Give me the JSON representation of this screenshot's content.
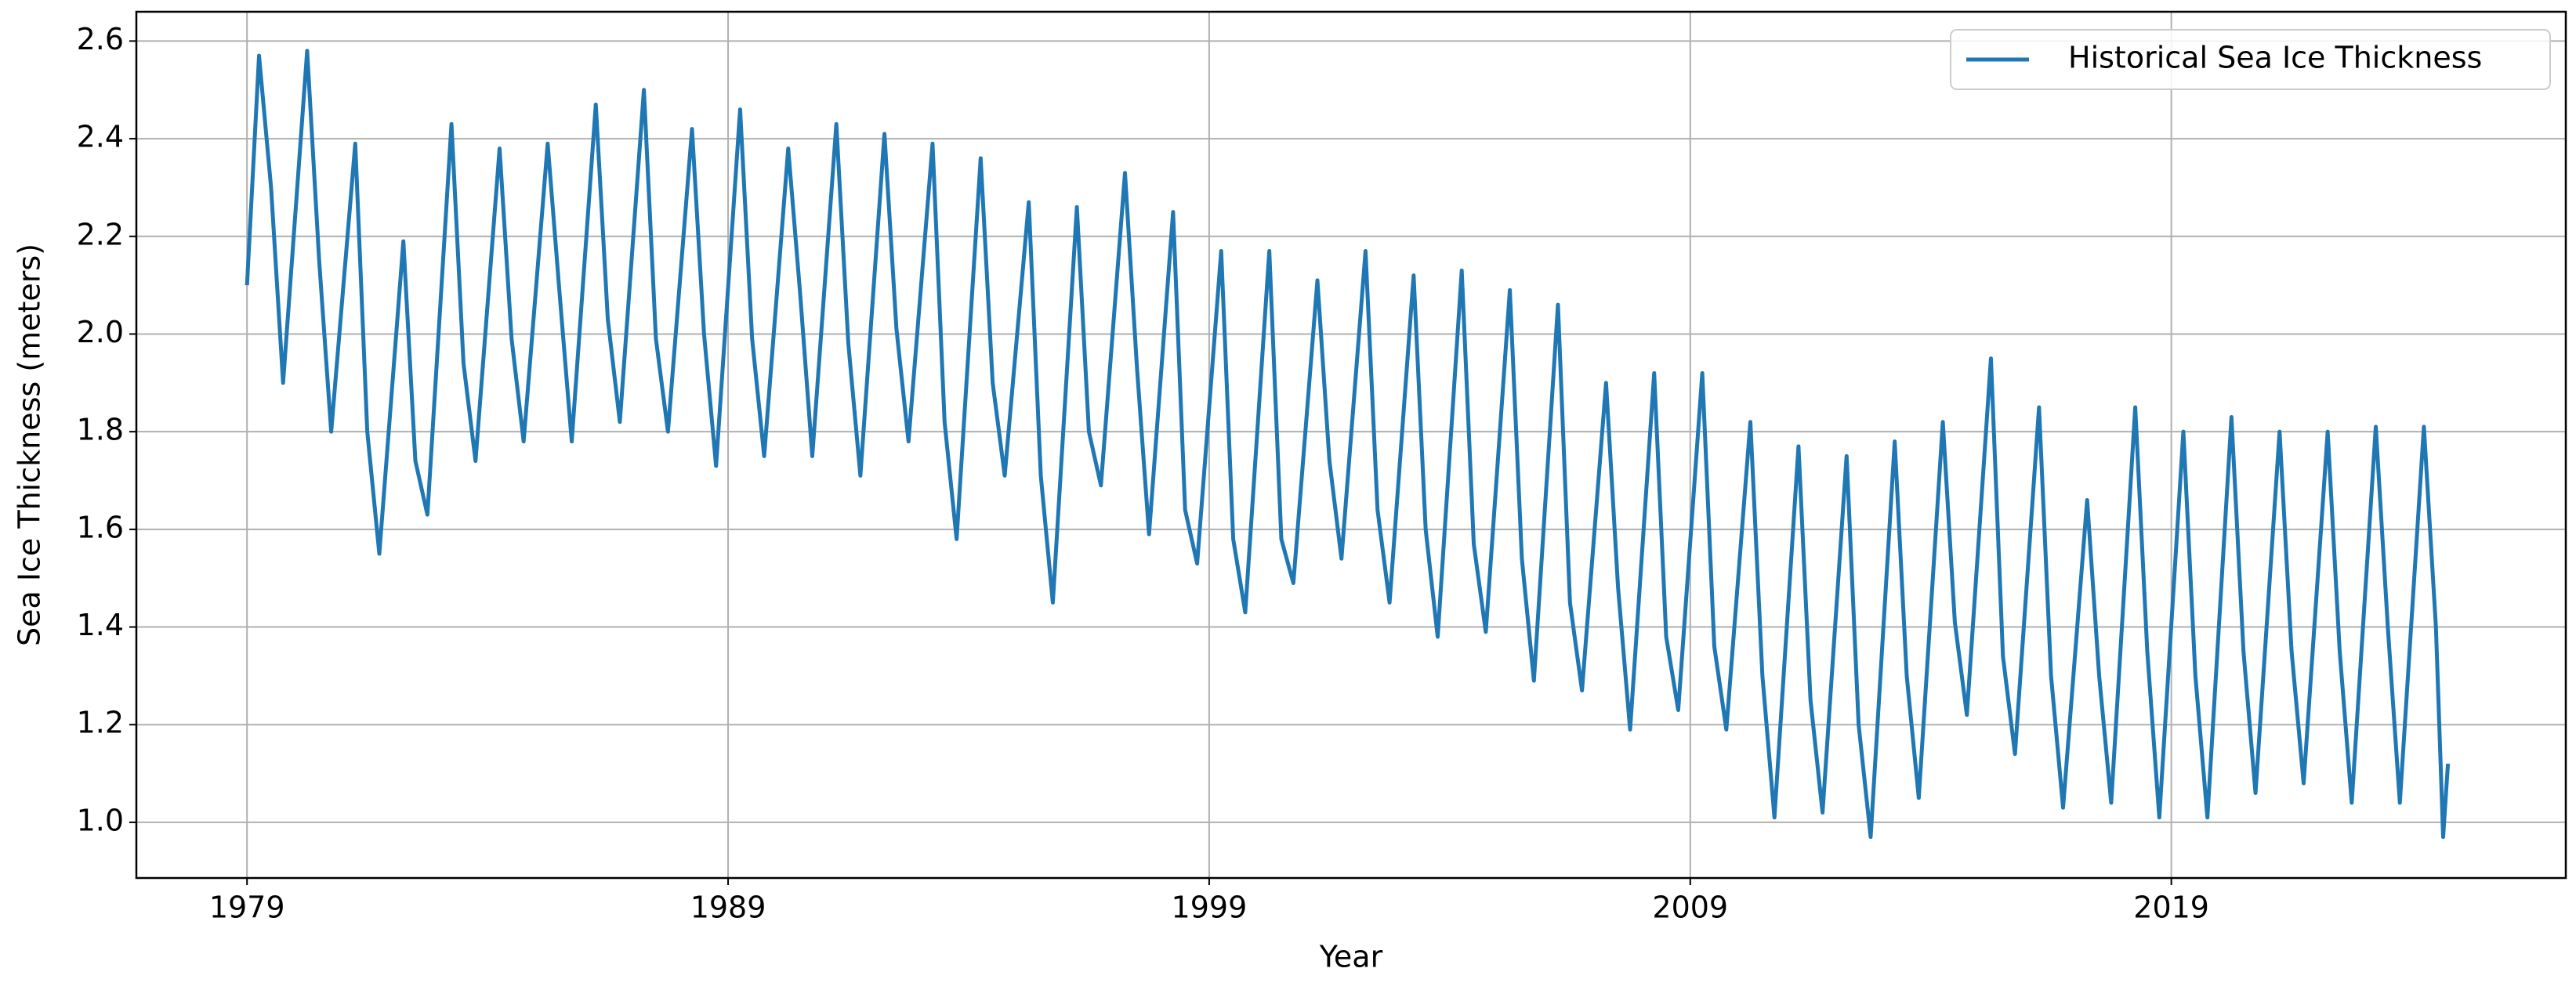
{
  "chart_data": {
    "type": "line",
    "xlabel": "Year",
    "ylabel": "Sea Ice Thickness (meters)",
    "x": [
      1979,
      1979.25,
      1979.5,
      1979.75,
      1980.25,
      1980.5,
      1980.75,
      1981.25,
      1981.5,
      1981.75,
      1982.25,
      1982.5,
      1982.75,
      1983.25,
      1983.5,
      1983.75,
      1984.25,
      1984.5,
      1984.75,
      1985.25,
      1985.5,
      1985.75,
      1986.25,
      1986.5,
      1986.75,
      1987.25,
      1987.5,
      1987.75,
      1988.25,
      1988.5,
      1988.75,
      1989.25,
      1989.5,
      1989.75,
      1990.25,
      1990.5,
      1990.75,
      1991.25,
      1991.5,
      1991.75,
      1992.25,
      1992.5,
      1992.75,
      1993.25,
      1993.5,
      1993.75,
      1994.25,
      1994.5,
      1994.75,
      1995.25,
      1995.5,
      1995.75,
      1996.25,
      1996.5,
      1996.75,
      1997.25,
      1997.5,
      1997.75,
      1998.25,
      1998.5,
      1998.75,
      1999.25,
      1999.5,
      1999.75,
      2000.25,
      2000.5,
      2000.75,
      2001.25,
      2001.5,
      2001.75,
      2002.25,
      2002.5,
      2002.75,
      2003.25,
      2003.5,
      2003.75,
      2004.25,
      2004.5,
      2004.75,
      2005.25,
      2005.5,
      2005.75,
      2006.25,
      2006.5,
      2006.75,
      2007.25,
      2007.5,
      2007.75,
      2008.25,
      2008.5,
      2008.75,
      2009.25,
      2009.5,
      2009.75,
      2010.25,
      2010.5,
      2010.75,
      2011.25,
      2011.5,
      2011.75,
      2012.25,
      2012.5,
      2012.75,
      2013.25,
      2013.5,
      2013.75,
      2014.25,
      2014.5,
      2014.75,
      2015.25,
      2015.5,
      2015.75,
      2016.25,
      2016.5,
      2016.75,
      2017.25,
      2017.5,
      2017.75,
      2018.25,
      2018.5,
      2018.75,
      2019.25,
      2019.5,
      2019.75,
      2020.25,
      2020.5,
      2020.75,
      2021.25,
      2021.5,
      2021.75,
      2022.25,
      2022.5,
      2022.75,
      2023.25,
      2023.5,
      2023.75,
      2024.25,
      2024.5,
      2024.65,
      2024.75
    ],
    "series": [
      {
        "name": "Historical Sea Ice Thickness",
        "color": "#1f77b4",
        "values": [
          2.1,
          2.57,
          2.3,
          1.9,
          2.58,
          2.15,
          1.8,
          2.39,
          1.8,
          1.55,
          2.19,
          1.74,
          1.63,
          2.43,
          1.94,
          1.74,
          2.38,
          1.99,
          1.78,
          2.39,
          2.08,
          1.78,
          2.47,
          2.03,
          1.82,
          2.5,
          1.99,
          1.8,
          2.42,
          2.0,
          1.73,
          2.46,
          1.99,
          1.75,
          2.38,
          2.08,
          1.75,
          2.43,
          1.98,
          1.71,
          2.41,
          2.01,
          1.78,
          2.39,
          1.82,
          1.58,
          2.36,
          1.9,
          1.71,
          2.27,
          1.71,
          1.45,
          2.26,
          1.8,
          1.69,
          2.33,
          1.93,
          1.59,
          2.25,
          1.64,
          1.53,
          2.17,
          1.58,
          1.43,
          2.17,
          1.58,
          1.49,
          2.11,
          1.74,
          1.54,
          2.17,
          1.64,
          1.45,
          2.12,
          1.6,
          1.38,
          2.13,
          1.57,
          1.39,
          2.09,
          1.54,
          1.29,
          2.06,
          1.45,
          1.27,
          1.9,
          1.48,
          1.19,
          1.92,
          1.38,
          1.23,
          1.92,
          1.36,
          1.19,
          1.82,
          1.3,
          1.01,
          1.77,
          1.25,
          1.02,
          1.75,
          1.2,
          0.97,
          1.78,
          1.3,
          1.05,
          1.82,
          1.41,
          1.22,
          1.95,
          1.34,
          1.14,
          1.85,
          1.3,
          1.03,
          1.66,
          1.3,
          1.04,
          1.85,
          1.35,
          1.01,
          1.8,
          1.3,
          1.01,
          1.83,
          1.35,
          1.06,
          1.8,
          1.35,
          1.08,
          1.8,
          1.35,
          1.04,
          1.81,
          1.4,
          1.04,
          1.81,
          1.4,
          0.97,
          1.12
        ]
      }
    ],
    "xlim": [
      1976.7,
      2027.2
    ],
    "ylim": [
      0.886,
      2.66
    ],
    "xticks": [
      1979,
      1989,
      1999,
      2009,
      2019
    ],
    "yticks": [
      {
        "value": 1,
        "label": "1.0"
      },
      1.2,
      1.4,
      1.6,
      1.8,
      {
        "value": 2,
        "label": "2.0"
      },
      2.2,
      2.4,
      2.6
    ],
    "grid": true,
    "legend": "upper right"
  }
}
